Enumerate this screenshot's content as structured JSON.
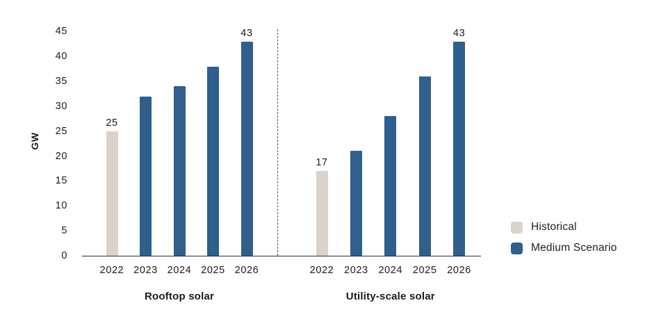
{
  "chart_data": {
    "type": "bar",
    "title": "",
    "xlabel": "",
    "ylabel": "GW",
    "ylim": [
      0,
      45
    ],
    "yticks": [
      0,
      5,
      10,
      15,
      20,
      25,
      30,
      35,
      40,
      45
    ],
    "grid": false,
    "legend_position": "right",
    "legend": [
      {
        "label": "Historical",
        "color": "#d9d3cc"
      },
      {
        "label": "Medium Scenario",
        "color": "#2e5f8d"
      }
    ],
    "groups": [
      {
        "name": "Rooftop solar",
        "categories": [
          "2022",
          "2023",
          "2024",
          "2025",
          "2026"
        ],
        "bars": [
          {
            "year": "2022",
            "value": 25,
            "series": "Historical",
            "label": "25"
          },
          {
            "year": "2023",
            "value": 32,
            "series": "Medium Scenario"
          },
          {
            "year": "2024",
            "value": 34,
            "series": "Medium Scenario"
          },
          {
            "year": "2025",
            "value": 38,
            "series": "Medium Scenario"
          },
          {
            "year": "2026",
            "value": 43,
            "series": "Medium Scenario",
            "label": "43"
          }
        ]
      },
      {
        "name": "Utility-scale solar",
        "categories": [
          "2022",
          "2023",
          "2024",
          "2025",
          "2026"
        ],
        "bars": [
          {
            "year": "2022",
            "value": 17,
            "series": "Historical",
            "label": "17"
          },
          {
            "year": "2023",
            "value": 21,
            "series": "Medium Scenario"
          },
          {
            "year": "2024",
            "value": 28,
            "series": "Medium Scenario"
          },
          {
            "year": "2025",
            "value": 36,
            "series": "Medium Scenario"
          },
          {
            "year": "2026",
            "value": 43,
            "series": "Medium Scenario",
            "label": "43"
          }
        ]
      }
    ]
  }
}
